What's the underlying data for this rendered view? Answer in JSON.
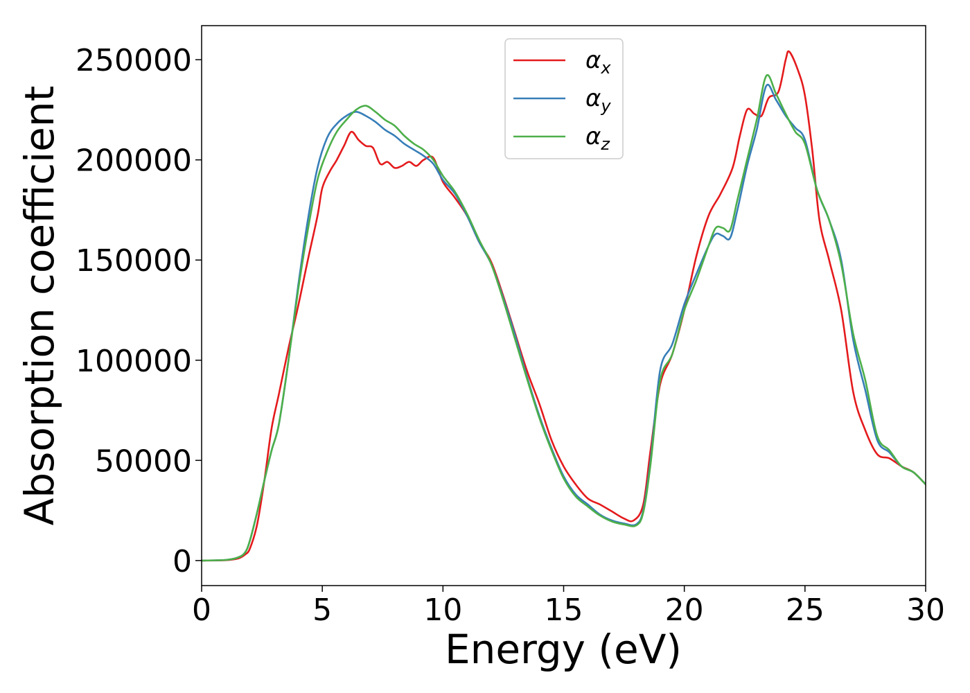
{
  "chart_data": {
    "type": "line",
    "title": "",
    "xlabel": "Energy (eV)",
    "ylabel": "Absorption coefficient",
    "xlim": [
      0,
      30
    ],
    "ylim": [
      -12500,
      267000
    ],
    "xticks": [
      0,
      5,
      10,
      15,
      20,
      25,
      30
    ],
    "yticks": [
      0,
      50000,
      100000,
      150000,
      200000,
      250000
    ],
    "grid": false,
    "legend_position": "top-center",
    "series": [
      {
        "name": "α",
        "subscript": "x",
        "color": "#e41a1c",
        "points": [
          [
            0,
            0
          ],
          [
            1,
            200
          ],
          [
            1.5,
            1000
          ],
          [
            1.8,
            3000
          ],
          [
            2.0,
            6000
          ],
          [
            2.3,
            18000
          ],
          [
            2.6,
            40000
          ],
          [
            2.9,
            66000
          ],
          [
            3.2,
            83000
          ],
          [
            3.6,
            106000
          ],
          [
            4.0,
            127000
          ],
          [
            4.4,
            150000
          ],
          [
            4.8,
            172000
          ],
          [
            5.0,
            186000
          ],
          [
            5.3,
            194000
          ],
          [
            5.6,
            200000
          ],
          [
            5.9,
            207000
          ],
          [
            6.2,
            214000
          ],
          [
            6.5,
            210000
          ],
          [
            6.8,
            207000
          ],
          [
            7.1,
            206000
          ],
          [
            7.4,
            198000
          ],
          [
            7.7,
            199000
          ],
          [
            8.0,
            196000
          ],
          [
            8.3,
            197000
          ],
          [
            8.6,
            199000
          ],
          [
            8.9,
            197000
          ],
          [
            9.2,
            200000
          ],
          [
            9.6,
            201000
          ],
          [
            10.0,
            189000
          ],
          [
            10.5,
            181000
          ],
          [
            11.0,
            172000
          ],
          [
            11.5,
            159000
          ],
          [
            12.0,
            149000
          ],
          [
            12.5,
            132000
          ],
          [
            13.0,
            113000
          ],
          [
            13.5,
            94000
          ],
          [
            14.0,
            78000
          ],
          [
            14.5,
            60000
          ],
          [
            15.0,
            47000
          ],
          [
            15.5,
            38000
          ],
          [
            16.0,
            31000
          ],
          [
            16.5,
            28000
          ],
          [
            17.0,
            24500
          ],
          [
            17.5,
            21000
          ],
          [
            17.9,
            20000
          ],
          [
            18.3,
            28000
          ],
          [
            18.6,
            55000
          ],
          [
            19.0,
            88000
          ],
          [
            19.5,
            103000
          ],
          [
            20.0,
            125000
          ],
          [
            20.5,
            152000
          ],
          [
            21.0,
            172000
          ],
          [
            21.5,
            183000
          ],
          [
            22.0,
            196000
          ],
          [
            22.3,
            212000
          ],
          [
            22.6,
            225000
          ],
          [
            22.9,
            223000
          ],
          [
            23.2,
            222000
          ],
          [
            23.5,
            231000
          ],
          [
            23.9,
            234000
          ],
          [
            24.2,
            250000
          ],
          [
            24.35,
            254000
          ],
          [
            24.7,
            245000
          ],
          [
            25.0,
            232000
          ],
          [
            25.3,
            205000
          ],
          [
            25.6,
            170000
          ],
          [
            26.0,
            150000
          ],
          [
            26.5,
            125000
          ],
          [
            27.0,
            84000
          ],
          [
            27.5,
            65000
          ],
          [
            28.0,
            53000
          ],
          [
            28.5,
            51000
          ],
          [
            29.0,
            47000
          ],
          [
            29.5,
            44000
          ],
          [
            30,
            38000
          ]
        ]
      },
      {
        "name": "α",
        "subscript": "y",
        "color": "#377eb8",
        "points": [
          [
            0,
            0
          ],
          [
            1,
            300
          ],
          [
            1.5,
            1500
          ],
          [
            1.8,
            4000
          ],
          [
            2.0,
            10000
          ],
          [
            2.3,
            24000
          ],
          [
            2.6,
            40000
          ],
          [
            2.9,
            55000
          ],
          [
            3.2,
            68000
          ],
          [
            3.6,
            100000
          ],
          [
            4.0,
            137000
          ],
          [
            4.4,
            170000
          ],
          [
            4.8,
            196000
          ],
          [
            5.2,
            211000
          ],
          [
            5.6,
            218000
          ],
          [
            6.0,
            222000
          ],
          [
            6.4,
            224000
          ],
          [
            6.8,
            222000
          ],
          [
            7.2,
            219000
          ],
          [
            7.6,
            215000
          ],
          [
            8.0,
            212000
          ],
          [
            8.4,
            208000
          ],
          [
            8.8,
            205000
          ],
          [
            9.2,
            202000
          ],
          [
            9.6,
            198000
          ],
          [
            10.0,
            190000
          ],
          [
            10.5,
            183000
          ],
          [
            11.0,
            172000
          ],
          [
            11.5,
            159000
          ],
          [
            12.0,
            148000
          ],
          [
            12.5,
            131000
          ],
          [
            13.0,
            112000
          ],
          [
            13.5,
            91000
          ],
          [
            14.0,
            72000
          ],
          [
            14.5,
            56000
          ],
          [
            15.0,
            42000
          ],
          [
            15.5,
            33000
          ],
          [
            16.0,
            28000
          ],
          [
            16.5,
            23000
          ],
          [
            17.0,
            20000
          ],
          [
            17.5,
            18500
          ],
          [
            18.0,
            18000
          ],
          [
            18.3,
            25000
          ],
          [
            18.6,
            50000
          ],
          [
            19.0,
            95000
          ],
          [
            19.5,
            108000
          ],
          [
            20.0,
            128000
          ],
          [
            20.5,
            143000
          ],
          [
            21.0,
            157000
          ],
          [
            21.3,
            163000
          ],
          [
            21.6,
            162000
          ],
          [
            21.9,
            161000
          ],
          [
            22.2,
            175000
          ],
          [
            22.6,
            197000
          ],
          [
            23.0,
            215000
          ],
          [
            23.4,
            237000
          ],
          [
            23.8,
            230000
          ],
          [
            24.2,
            222000
          ],
          [
            24.6,
            216000
          ],
          [
            25.0,
            210000
          ],
          [
            25.5,
            185000
          ],
          [
            26.0,
            170000
          ],
          [
            26.5,
            150000
          ],
          [
            27.0,
            110000
          ],
          [
            27.5,
            85000
          ],
          [
            28.0,
            60000
          ],
          [
            28.5,
            54000
          ],
          [
            29.0,
            47000
          ],
          [
            29.5,
            44000
          ],
          [
            30,
            38000
          ]
        ]
      },
      {
        "name": "α",
        "subscript": "z",
        "color": "#4daf4a",
        "points": [
          [
            0,
            0
          ],
          [
            1,
            300
          ],
          [
            1.5,
            1500
          ],
          [
            1.8,
            4000
          ],
          [
            2.0,
            10000
          ],
          [
            2.3,
            24000
          ],
          [
            2.6,
            40000
          ],
          [
            2.9,
            55000
          ],
          [
            3.2,
            68000
          ],
          [
            3.6,
            100000
          ],
          [
            4.0,
            135000
          ],
          [
            4.4,
            165000
          ],
          [
            4.8,
            190000
          ],
          [
            5.2,
            204000
          ],
          [
            5.6,
            214000
          ],
          [
            6.0,
            220000
          ],
          [
            6.4,
            225000
          ],
          [
            6.8,
            227000
          ],
          [
            7.2,
            224000
          ],
          [
            7.6,
            220000
          ],
          [
            8.0,
            217000
          ],
          [
            8.4,
            212000
          ],
          [
            8.8,
            208000
          ],
          [
            9.2,
            205000
          ],
          [
            9.6,
            200000
          ],
          [
            10.0,
            192000
          ],
          [
            10.5,
            184000
          ],
          [
            11.0,
            173000
          ],
          [
            11.5,
            160000
          ],
          [
            12.0,
            148000
          ],
          [
            12.5,
            130000
          ],
          [
            13.0,
            110000
          ],
          [
            13.5,
            90000
          ],
          [
            14.0,
            71000
          ],
          [
            14.5,
            55000
          ],
          [
            15.0,
            41000
          ],
          [
            15.5,
            32000
          ],
          [
            16.0,
            27000
          ],
          [
            16.5,
            22500
          ],
          [
            17.0,
            19500
          ],
          [
            17.5,
            18000
          ],
          [
            18.0,
            17500
          ],
          [
            18.3,
            24000
          ],
          [
            18.6,
            48000
          ],
          [
            19.0,
            90000
          ],
          [
            19.5,
            103000
          ],
          [
            20.0,
            125000
          ],
          [
            20.5,
            140000
          ],
          [
            21.0,
            157000
          ],
          [
            21.3,
            166000
          ],
          [
            21.6,
            166000
          ],
          [
            21.9,
            165000
          ],
          [
            22.2,
            180000
          ],
          [
            22.6,
            200000
          ],
          [
            23.0,
            220000
          ],
          [
            23.4,
            242000
          ],
          [
            23.8,
            233000
          ],
          [
            24.2,
            223000
          ],
          [
            24.6,
            214000
          ],
          [
            25.0,
            208000
          ],
          [
            25.5,
            185000
          ],
          [
            26.0,
            170000
          ],
          [
            26.5,
            148000
          ],
          [
            27.0,
            113000
          ],
          [
            27.5,
            90000
          ],
          [
            28.0,
            62000
          ],
          [
            28.5,
            55000
          ],
          [
            29.0,
            47000
          ],
          [
            29.5,
            44000
          ],
          [
            30,
            38000
          ]
        ]
      }
    ]
  }
}
